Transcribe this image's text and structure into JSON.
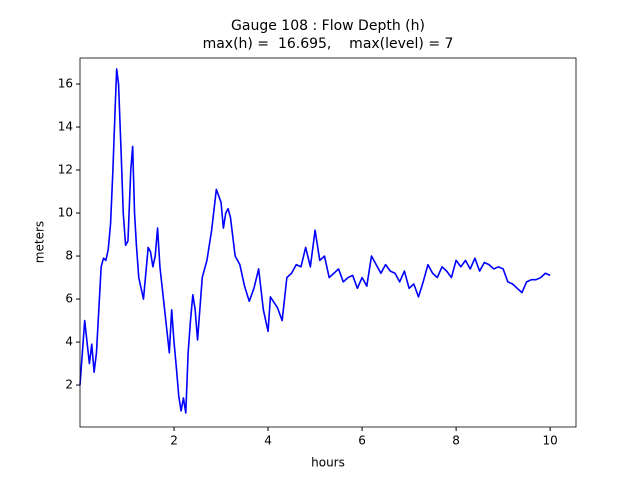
{
  "chart_data": {
    "type": "line",
    "title": "Gauge 108 : Flow Depth (h)",
    "subtitle": "max(h) =  16.695,    max(level) = 7",
    "x_label": "hours",
    "y_label": "meters",
    "xlim": [
      0,
      10.55
    ],
    "ylim": [
      0.05,
      17.21
    ],
    "xticks": [
      2,
      4,
      6,
      8,
      10
    ],
    "yticks": [
      2,
      4,
      6,
      8,
      10,
      12,
      14,
      16
    ],
    "grid": false,
    "series": [
      {
        "color": "#0000ff",
        "x": [
          0.0,
          0.05,
          0.1,
          0.15,
          0.2,
          0.25,
          0.3,
          0.35,
          0.4,
          0.45,
          0.5,
          0.55,
          0.6,
          0.65,
          0.7,
          0.75,
          0.78,
          0.82,
          0.88,
          0.92,
          0.97,
          1.02,
          1.08,
          1.12,
          1.16,
          1.2,
          1.25,
          1.3,
          1.35,
          1.4,
          1.45,
          1.5,
          1.55,
          1.6,
          1.65,
          1.7,
          1.75,
          1.8,
          1.85,
          1.9,
          1.95,
          2.0,
          2.05,
          2.1,
          2.15,
          2.2,
          2.25,
          2.3,
          2.35,
          2.4,
          2.45,
          2.5,
          2.6,
          2.7,
          2.8,
          2.9,
          3.0,
          3.05,
          3.1,
          3.15,
          3.2,
          3.3,
          3.4,
          3.5,
          3.6,
          3.7,
          3.8,
          3.9,
          4.0,
          4.05,
          4.2,
          4.3,
          4.4,
          4.5,
          4.6,
          4.7,
          4.8,
          4.9,
          5.0,
          5.1,
          5.2,
          5.3,
          5.4,
          5.5,
          5.6,
          5.7,
          5.8,
          5.9,
          6.0,
          6.1,
          6.2,
          6.3,
          6.4,
          6.5,
          6.6,
          6.7,
          6.8,
          6.9,
          7.0,
          7.1,
          7.2,
          7.3,
          7.4,
          7.5,
          7.6,
          7.7,
          7.8,
          7.9,
          8.0,
          8.1,
          8.2,
          8.3,
          8.4,
          8.5,
          8.6,
          8.7,
          8.8,
          8.9,
          9.0,
          9.1,
          9.2,
          9.3,
          9.4,
          9.5,
          9.6,
          9.7,
          9.8,
          9.9,
          10.0
        ],
        "values": [
          2.0,
          3.5,
          5.0,
          4.0,
          3.0,
          3.9,
          2.6,
          3.5,
          5.5,
          7.5,
          7.9,
          7.8,
          8.3,
          9.5,
          12.0,
          15.0,
          16.7,
          16.0,
          12.5,
          10.0,
          8.5,
          8.7,
          12.0,
          13.1,
          10.0,
          8.5,
          7.0,
          6.5,
          6.0,
          7.2,
          8.4,
          8.2,
          7.5,
          8.0,
          9.3,
          7.5,
          6.5,
          5.5,
          4.5,
          3.5,
          5.5,
          4.0,
          2.8,
          1.5,
          0.8,
          1.4,
          0.7,
          3.5,
          5.0,
          6.2,
          5.5,
          4.1,
          7.0,
          7.8,
          9.2,
          11.1,
          10.5,
          9.3,
          10.0,
          10.2,
          9.8,
          8.0,
          7.6,
          6.6,
          5.9,
          6.5,
          7.4,
          5.5,
          4.5,
          6.1,
          5.6,
          5.0,
          7.0,
          7.2,
          7.6,
          7.5,
          8.4,
          7.5,
          9.2,
          7.8,
          8.0,
          7.0,
          7.2,
          7.4,
          6.8,
          7.0,
          7.1,
          6.5,
          7.0,
          6.6,
          8.0,
          7.6,
          7.2,
          7.6,
          7.3,
          7.2,
          6.8,
          7.3,
          6.5,
          6.7,
          6.1,
          6.8,
          7.6,
          7.2,
          7.0,
          7.5,
          7.3,
          7.0,
          7.8,
          7.5,
          7.8,
          7.4,
          7.9,
          7.3,
          7.7,
          7.6,
          7.4,
          7.5,
          7.4,
          6.8,
          6.7,
          6.5,
          6.3,
          6.8,
          6.9,
          6.9,
          7.0,
          7.2,
          7.1
        ]
      }
    ]
  }
}
